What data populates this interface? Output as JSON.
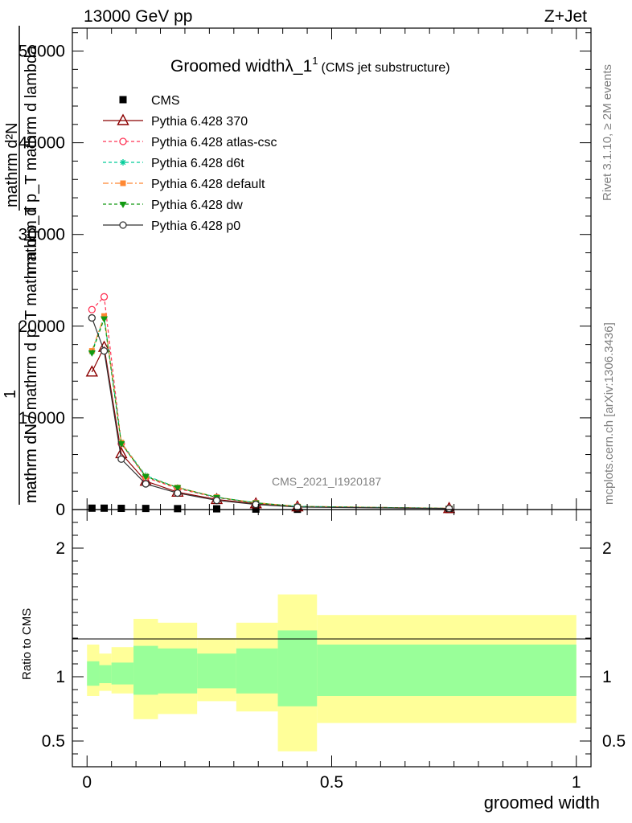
{
  "header": {
    "energy": "13000 GeV pp",
    "process": "Z+Jet",
    "title_main": "Groomed widthλ_1",
    "title_sup": "1",
    "title_sub": "(CMS jet substructure)",
    "watermark": "CMS_2021_I1920187",
    "side_rivet": "Rivet 3.1.10, ≥ 2M events",
    "side_site": "mcplots.cern.ch [arXiv:1306.3436]"
  },
  "axes": {
    "ylabel_top_num": "mathrm d²N",
    "ylabel_top_den": "mathrm d p_T mathrm d lambda",
    "ylabel_one": "1",
    "ylabel_den_full": "mathrm dN / mathrm d p_T mathrm d p_T",
    "ylabel_den_short": "mathrm dN",
    "ratio_ylabel": "Ratio to CMS",
    "xlabel": "groomed width"
  },
  "colors": {
    "band_outer": "#ffff99",
    "band_inner": "#99ff99",
    "cms": "#000000",
    "p370": "#8b0000",
    "atlas": "#ff3355",
    "d6t": "#00cc99",
    "default": "#ff8833",
    "dw": "#119911",
    "p0": "#333333"
  },
  "chart_data": {
    "type": "scatter",
    "x_range": [
      -0.03,
      1.03
    ],
    "main_ylim": [
      0,
      52500
    ],
    "main_yticks": [
      0,
      10000,
      20000,
      30000,
      40000,
      50000
    ],
    "ratio_ylim": [
      0.3,
      2.3
    ],
    "ratio_yticks": [
      0.5,
      1,
      2
    ],
    "xticks": [
      0,
      0.5,
      1
    ],
    "x": [
      0.01,
      0.035,
      0.07,
      0.12,
      0.185,
      0.265,
      0.345,
      0.43,
      0.74
    ],
    "series": [
      {
        "name": "CMS",
        "color": "#000000",
        "marker": "square",
        "dash": "",
        "values": [
          150,
          150,
          130,
          120,
          100,
          80,
          50,
          30,
          10
        ]
      },
      {
        "name": "Pythia 6.428 370",
        "color": "#8b0000",
        "marker": "triangle-up-open",
        "dash": "",
        "values": [
          15000,
          17700,
          6100,
          3100,
          1900,
          1100,
          630,
          300,
          120
        ]
      },
      {
        "name": "Pythia 6.428 atlas-csc",
        "color": "#ff3355",
        "marker": "circle-open",
        "dash": "4,3",
        "values": [
          21800,
          23200,
          7200,
          3500,
          2300,
          1300,
          720,
          340,
          130
        ]
      },
      {
        "name": "Pythia 6.428 d6t",
        "color": "#00cc99",
        "marker": "star",
        "dash": "4,3",
        "values": [
          17200,
          21000,
          7300,
          3700,
          2400,
          1350,
          740,
          350,
          130
        ]
      },
      {
        "name": "Pythia 6.428 default",
        "color": "#ff8833",
        "marker": "square-small",
        "dash": "7,3,2,3",
        "values": [
          17300,
          21100,
          7300,
          3600,
          2400,
          1350,
          740,
          350,
          130
        ]
      },
      {
        "name": "Pythia 6.428 dw",
        "color": "#119911",
        "marker": "triangle-down",
        "dash": "4,3",
        "values": [
          17100,
          20800,
          7200,
          3600,
          2400,
          1330,
          730,
          340,
          130
        ]
      },
      {
        "name": "Pythia 6.428 p0",
        "color": "#333333",
        "marker": "circle-open",
        "dash": "",
        "values": [
          20900,
          17300,
          5500,
          2800,
          1800,
          1000,
          560,
          270,
          110
        ]
      }
    ],
    "ratio_bands": {
      "edges": [
        0,
        0.025,
        0.05,
        0.095,
        0.145,
        0.225,
        0.305,
        0.39,
        0.47,
        1.0
      ],
      "outer_low": [
        0.85,
        0.89,
        0.87,
        0.67,
        0.71,
        0.81,
        0.73,
        0.42,
        0.64
      ],
      "outer_high": [
        1.25,
        1.18,
        1.23,
        1.45,
        1.42,
        1.3,
        1.42,
        1.64,
        1.48
      ],
      "inner_low": [
        0.93,
        0.95,
        0.94,
        0.86,
        0.87,
        0.91,
        0.87,
        0.77,
        0.85
      ],
      "inner_high": [
        1.12,
        1.09,
        1.11,
        1.24,
        1.22,
        1.18,
        1.22,
        1.36,
        1.25
      ]
    }
  }
}
